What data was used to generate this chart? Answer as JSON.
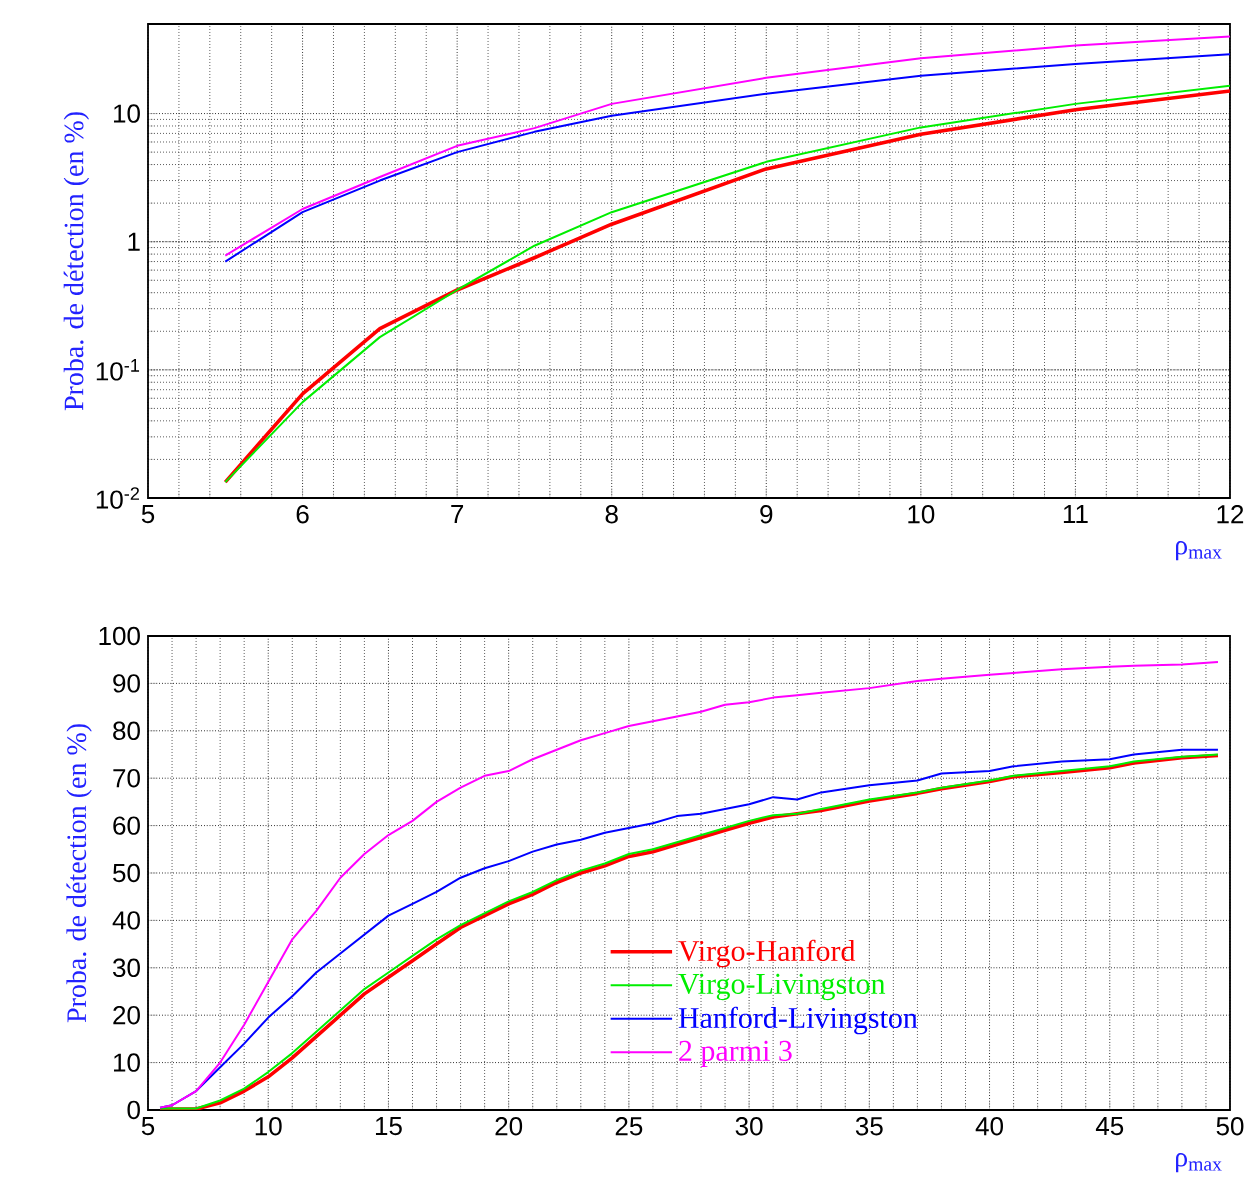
{
  "chart_data": [
    {
      "type": "line",
      "xlabel": "ρ$_{max}$",
      "ylabel": "Proba. de détection (en %)",
      "log": "y",
      "grid": true,
      "legend": false,
      "xlim": [
        5,
        12
      ],
      "ylim": [
        0.01,
        50
      ],
      "xticks": [
        5,
        6,
        7,
        8,
        9,
        10,
        11,
        12
      ],
      "yticks": [
        {
          "value": 0.01,
          "label": "10$^{-2}$"
        },
        {
          "value": 0.1,
          "label": "10$^{-1}$"
        },
        1,
        10
      ],
      "x": [
        5.5,
        6,
        6.5,
        7,
        7.5,
        8,
        9,
        10,
        11,
        12
      ],
      "series": [
        {
          "color": "#ff0000",
          "values": [
            0.0133,
            0.065,
            0.21,
            0.42,
            0.75,
            1.37,
            3.7,
            6.9,
            10.7,
            15
          ]
        },
        {
          "color": "#00ee00",
          "values": [
            0.0133,
            0.056,
            0.18,
            0.42,
            0.93,
            1.7,
            4.2,
            7.8,
            11.9,
            16.5
          ]
        },
        {
          "color": "#0000ff",
          "values": [
            0.7,
            1.7,
            3.0,
            5.0,
            7.2,
            9.6,
            14.3,
            19.7,
            24.4,
            29
          ]
        },
        {
          "color": "#ff00ff",
          "values": [
            0.78,
            1.8,
            3.2,
            5.6,
            7.7,
            11.9,
            19,
            27,
            34,
            40
          ]
        }
      ]
    },
    {
      "type": "line",
      "xlabel": "ρ$_{max}$",
      "ylabel": "Proba. de détection (en %)",
      "grid": true,
      "legend": "bottom right",
      "xlim": [
        5,
        50
      ],
      "ylim": [
        0,
        100
      ],
      "xticks": [
        5,
        10,
        15,
        20,
        25,
        30,
        35,
        40,
        45,
        50
      ],
      "yticks": [
        0,
        10,
        20,
        30,
        40,
        50,
        60,
        70,
        80,
        90,
        100
      ],
      "x": [
        5.5,
        6,
        7,
        8,
        9,
        10,
        11,
        12,
        13,
        14,
        15,
        16,
        17,
        18,
        19,
        20,
        21,
        22,
        23,
        24,
        25,
        26,
        27,
        28,
        29,
        30,
        31,
        32,
        33,
        35,
        37,
        38,
        40,
        41,
        43,
        45,
        46,
        48,
        49.5
      ],
      "series": [
        {
          "name": "Virgo-Hanford",
          "color": "#ff0000",
          "values": [
            0.2,
            0.2,
            0.2,
            1.5,
            4,
            7,
            11,
            15.5,
            20,
            24.5,
            28,
            31.5,
            35,
            38.5,
            41,
            43.5,
            45.5,
            48,
            50,
            51.5,
            53.5,
            54.5,
            56,
            57.5,
            59,
            60.5,
            61.8,
            62.5,
            63.2,
            65.2,
            66.8,
            67.8,
            69.3,
            70.3,
            71.2,
            72.2,
            73.2,
            74.3,
            74.8
          ]
        },
        {
          "name": "Virgo-Livingston",
          "color": "#00ee00",
          "values": [
            0.3,
            0.3,
            0.3,
            2,
            4.5,
            8,
            12,
            16.5,
            21,
            25.5,
            29,
            32.5,
            36,
            39,
            41.5,
            44,
            46,
            48.5,
            50.5,
            52,
            54,
            55,
            56.5,
            58,
            59.5,
            61,
            62.2,
            62.5,
            63.5,
            65.5,
            67,
            68,
            69.5,
            70.5,
            71.5,
            72.5,
            73.5,
            74.5,
            75
          ]
        },
        {
          "name": "Hanford-Livingston",
          "color": "#0000ff",
          "values": [
            0.5,
            1,
            4,
            9,
            14,
            19.5,
            24,
            29,
            33,
            37,
            41,
            43.5,
            46,
            49,
            51,
            52.5,
            54.5,
            56,
            57,
            58.5,
            59.5,
            60.5,
            62,
            62.5,
            63.5,
            64.5,
            66,
            65.5,
            67,
            68.5,
            69.5,
            71,
            71.5,
            72.5,
            73.5,
            74,
            75,
            76,
            76
          ]
        },
        {
          "name": "2 parmi 3",
          "color": "#ff00ff",
          "values": [
            0.5,
            1,
            4,
            10,
            18,
            27,
            36,
            42,
            49,
            54,
            58,
            61,
            65,
            68,
            70.5,
            71.5,
            74,
            76,
            78,
            79.5,
            81,
            82,
            83,
            84,
            85.5,
            86,
            87,
            87.5,
            88,
            89,
            90.5,
            91,
            91.8,
            92.2,
            93,
            93.5,
            93.7,
            94,
            94.5
          ]
        }
      ]
    }
  ]
}
